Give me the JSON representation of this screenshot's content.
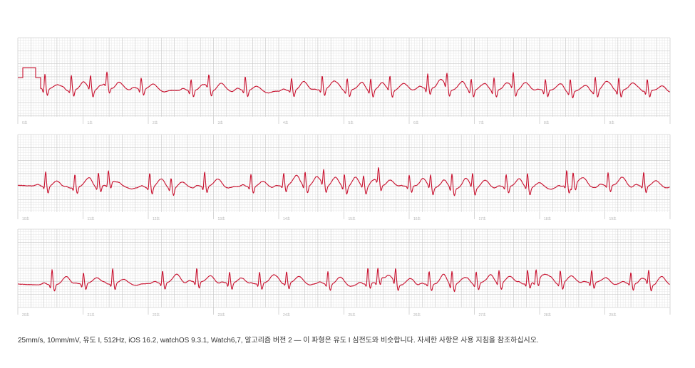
{
  "chart_data": {
    "type": "line",
    "strip_seconds": 10,
    "tick_labels": [
      [
        "0초",
        "1초",
        "2초",
        "3초",
        "4초",
        "5초",
        "6초",
        "7초",
        "8초",
        "9초"
      ],
      [
        "10초",
        "11초",
        "12초",
        "13초",
        "14초",
        "15초",
        "16초",
        "17초",
        "18초",
        "19초"
      ],
      [
        "20초",
        "21초",
        "22초",
        "23초",
        "24초",
        "25초",
        "26초",
        "27초",
        "28초",
        "29초"
      ]
    ],
    "calibration_pulse_mV": 1.0,
    "colors": {
      "trace": "#c8102e",
      "grid_minor": "#e6e6e6",
      "grid_major": "#c8c8c8",
      "ticks": "#cccccc"
    },
    "grid": true
  },
  "footer": {
    "text": "25mm/s, 10mm/mV, 유도 I, 512Hz, iOS 16.2, watchOS 9.3.1, Watch6,7, 알고리즘 버전 2 — 이 파형은 유도 I 심전도와 비슷합니다. 자세한 사항은 사용 지침을 참조하십시오."
  }
}
